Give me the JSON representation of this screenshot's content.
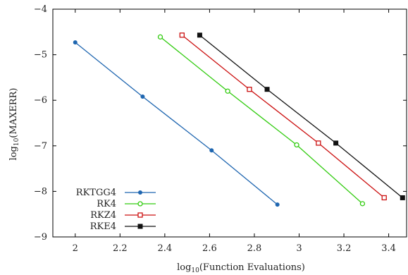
{
  "chart_data": {
    "type": "line",
    "xlabel_main": "log",
    "xlabel_sub": "10",
    "xlabel_rest": "(Function Evaluations)",
    "ylabel_main": "log",
    "ylabel_sub": "10",
    "ylabel_rest": "(MAXERR)",
    "xlim": [
      1.9,
      3.48
    ],
    "ylim": [
      -9,
      -4
    ],
    "xticks": [
      2,
      2.2,
      2.4,
      2.6,
      2.8,
      3,
      3.2,
      3.4
    ],
    "xtick_labels": [
      "2",
      "2.2",
      "2.4",
      "2.6",
      "2.8",
      "3",
      "3.2",
      "3.4"
    ],
    "yticks": [
      -9,
      -8,
      -7,
      -6,
      -5,
      -4
    ],
    "ytick_labels": [
      "−9",
      "−8",
      "−7",
      "−6",
      "−5",
      "−4"
    ],
    "grid": false,
    "legend_position": "bottom-left",
    "series": [
      {
        "name": "RKTGG4",
        "color": "#1f66b0",
        "marker": "filled-circle",
        "x": [
          2.0,
          2.301,
          2.609,
          2.903
        ],
        "y": [
          -4.73,
          -5.92,
          -7.1,
          -8.29
        ]
      },
      {
        "name": "RK4",
        "color": "#33cc11",
        "marker": "open-circle",
        "x": [
          2.38,
          2.681,
          2.989,
          3.283
        ],
        "y": [
          -4.61,
          -5.8,
          -6.98,
          -8.27
        ]
      },
      {
        "name": "RKZ4",
        "color": "#cc1111",
        "marker": "open-square",
        "x": [
          2.477,
          2.778,
          3.086,
          3.38
        ],
        "y": [
          -4.57,
          -5.76,
          -6.94,
          -8.14
        ]
      },
      {
        "name": "RKE4",
        "color": "#111111",
        "marker": "filled-square",
        "x": [
          2.556,
          2.857,
          3.164,
          3.462
        ],
        "y": [
          -4.57,
          -5.76,
          -6.94,
          -8.14
        ]
      }
    ]
  }
}
